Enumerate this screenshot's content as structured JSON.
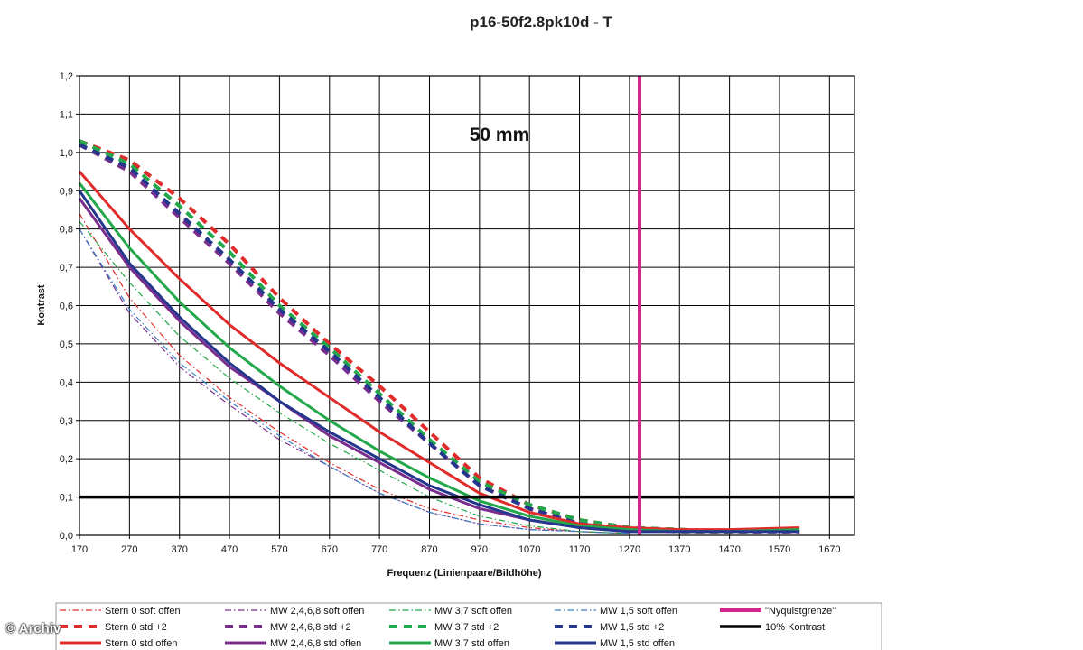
{
  "credit": "© Archiv",
  "chart_data": {
    "type": "line",
    "title": "p16-50f2.8pk10d - T",
    "annotation": "50 mm",
    "xlabel": "Frequenz (Linienpaare/Bildhöhe)",
    "ylabel": "Kontrast",
    "xlim": [
      170,
      1720
    ],
    "ylim": [
      0,
      1.2
    ],
    "x_ticks": [
      170,
      270,
      370,
      470,
      570,
      670,
      770,
      870,
      970,
      1070,
      1170,
      1270,
      1370,
      1470,
      1570,
      1670
    ],
    "y_ticks": [
      "0,0",
      "0,1",
      "0,2",
      "0,3",
      "0,4",
      "0,5",
      "0,6",
      "0,7",
      "0,8",
      "0,9",
      "1,0",
      "1,1",
      "1,2"
    ],
    "grid": true,
    "legend_position": "bottom",
    "colors": {
      "red": "#e02b2b",
      "purple": "#7b2d8e",
      "green": "#22a84a",
      "blue": "#24378c",
      "magenta": "#d6248f",
      "black": "#000000"
    },
    "series": [
      {
        "name": "Stern 0 soft offen",
        "color": "#e02b2b",
        "style": "dashdot",
        "width": 1.2,
        "x": [
          170,
          270,
          370,
          470,
          570,
          670,
          770,
          870,
          970,
          1070,
          1170,
          1270
        ],
        "y": [
          0.84,
          0.62,
          0.47,
          0.36,
          0.27,
          0.19,
          0.12,
          0.07,
          0.04,
          0.02,
          0.01,
          0.005
        ]
      },
      {
        "name": "Stern 0 std +2",
        "color": "#e02b2b",
        "style": "dash",
        "width": 4,
        "x": [
          170,
          270,
          370,
          470,
          570,
          670,
          770,
          870,
          970,
          1070,
          1170,
          1270,
          1370,
          1470,
          1610
        ],
        "y": [
          1.03,
          0.98,
          0.88,
          0.76,
          0.62,
          0.5,
          0.39,
          0.27,
          0.15,
          0.08,
          0.04,
          0.02,
          0.015,
          0.01,
          0.015
        ]
      },
      {
        "name": "Stern 0 std offen",
        "color": "#e02b2b",
        "style": "solid",
        "width": 3,
        "x": [
          170,
          270,
          370,
          470,
          570,
          670,
          770,
          870,
          970,
          1070,
          1170,
          1270,
          1370,
          1470,
          1610
        ],
        "y": [
          0.95,
          0.8,
          0.67,
          0.55,
          0.45,
          0.36,
          0.27,
          0.19,
          0.11,
          0.06,
          0.03,
          0.02,
          0.015,
          0.015,
          0.02
        ]
      },
      {
        "name": "MW 2,4,6,8 soft offen",
        "color": "#7b2d8e",
        "style": "dashdot",
        "width": 1.2,
        "x": [
          170,
          270,
          370,
          470,
          570,
          670,
          770,
          870,
          970,
          1070,
          1170,
          1270
        ],
        "y": [
          0.8,
          0.58,
          0.44,
          0.34,
          0.25,
          0.18,
          0.11,
          0.06,
          0.03,
          0.015,
          0.01,
          0.005
        ]
      },
      {
        "name": "MW 2,4,6,8 std +2",
        "color": "#7b2d8e",
        "style": "dash",
        "width": 4,
        "x": [
          170,
          270,
          370,
          470,
          570,
          670,
          770,
          870,
          970,
          1070,
          1170,
          1270,
          1370,
          1470,
          1610
        ],
        "y": [
          1.02,
          0.95,
          0.83,
          0.71,
          0.58,
          0.47,
          0.35,
          0.24,
          0.13,
          0.07,
          0.03,
          0.015,
          0.01,
          0.01,
          0.01
        ]
      },
      {
        "name": "MW 2,4,6,8 std offen",
        "color": "#7b2d8e",
        "style": "solid",
        "width": 3,
        "x": [
          170,
          270,
          370,
          470,
          570,
          670,
          770,
          870,
          970,
          1070,
          1170,
          1270,
          1370,
          1470,
          1610
        ],
        "y": [
          0.88,
          0.7,
          0.56,
          0.44,
          0.35,
          0.26,
          0.19,
          0.12,
          0.07,
          0.04,
          0.02,
          0.01,
          0.01,
          0.01,
          0.01
        ]
      },
      {
        "name": "MW 3,7 soft offen",
        "color": "#22a84a",
        "style": "dashdot",
        "width": 1.2,
        "x": [
          170,
          270,
          370,
          470,
          570,
          670,
          770,
          870,
          970,
          1070,
          1170,
          1270
        ],
        "y": [
          0.82,
          0.66,
          0.52,
          0.41,
          0.32,
          0.24,
          0.17,
          0.1,
          0.05,
          0.025,
          0.01,
          0.005
        ]
      },
      {
        "name": "MW 3,7 std +2",
        "color": "#22a84a",
        "style": "dash",
        "width": 4,
        "x": [
          170,
          270,
          370,
          470,
          570,
          670,
          770,
          870,
          970,
          1070,
          1170,
          1270,
          1370,
          1470,
          1610
        ],
        "y": [
          1.03,
          0.97,
          0.86,
          0.74,
          0.6,
          0.49,
          0.37,
          0.25,
          0.14,
          0.08,
          0.04,
          0.02,
          0.015,
          0.01,
          0.015
        ]
      },
      {
        "name": "MW 3,7 std offen",
        "color": "#22a84a",
        "style": "solid",
        "width": 3,
        "x": [
          170,
          270,
          370,
          470,
          570,
          670,
          770,
          870,
          970,
          1070,
          1170,
          1270,
          1370,
          1470,
          1610
        ],
        "y": [
          0.92,
          0.75,
          0.61,
          0.49,
          0.39,
          0.3,
          0.22,
          0.15,
          0.09,
          0.05,
          0.025,
          0.015,
          0.01,
          0.01,
          0.015
        ]
      },
      {
        "name": "MW 1,5 soft offen",
        "color": "#3a7fc4",
        "style": "dashdot",
        "width": 1.2,
        "x": [
          170,
          270,
          370,
          470,
          570,
          670,
          770,
          870,
          970,
          1070,
          1170,
          1270
        ],
        "y": [
          0.8,
          0.59,
          0.45,
          0.35,
          0.26,
          0.18,
          0.11,
          0.06,
          0.03,
          0.015,
          0.01,
          0.005
        ]
      },
      {
        "name": "MW 1,5 std +2",
        "color": "#24378c",
        "style": "dash",
        "width": 4,
        "x": [
          170,
          270,
          370,
          470,
          570,
          670,
          770,
          870,
          970,
          1070,
          1170,
          1270,
          1370,
          1470,
          1610
        ],
        "y": [
          1.02,
          0.96,
          0.84,
          0.72,
          0.59,
          0.48,
          0.36,
          0.24,
          0.13,
          0.07,
          0.03,
          0.015,
          0.01,
          0.01,
          0.01
        ]
      },
      {
        "name": "MW 1,5 std offen",
        "color": "#24378c",
        "style": "solid",
        "width": 3,
        "x": [
          170,
          270,
          370,
          470,
          570,
          670,
          770,
          870,
          970,
          1070,
          1170,
          1270,
          1370,
          1470,
          1610
        ],
        "y": [
          0.9,
          0.71,
          0.57,
          0.45,
          0.35,
          0.27,
          0.2,
          0.13,
          0.08,
          0.04,
          0.02,
          0.01,
          0.01,
          0.01,
          0.01
        ]
      },
      {
        "name": "\"Nyquistgrenze\"",
        "color": "#d6248f",
        "style": "vline",
        "width": 4,
        "x": [
          1290,
          1290
        ],
        "y": [
          0,
          1.2
        ]
      },
      {
        "name": "10% Kontrast",
        "color": "#000000",
        "style": "hline",
        "width": 3.5,
        "x": [
          170,
          1720
        ],
        "y": [
          0.1,
          0.1
        ]
      }
    ]
  }
}
